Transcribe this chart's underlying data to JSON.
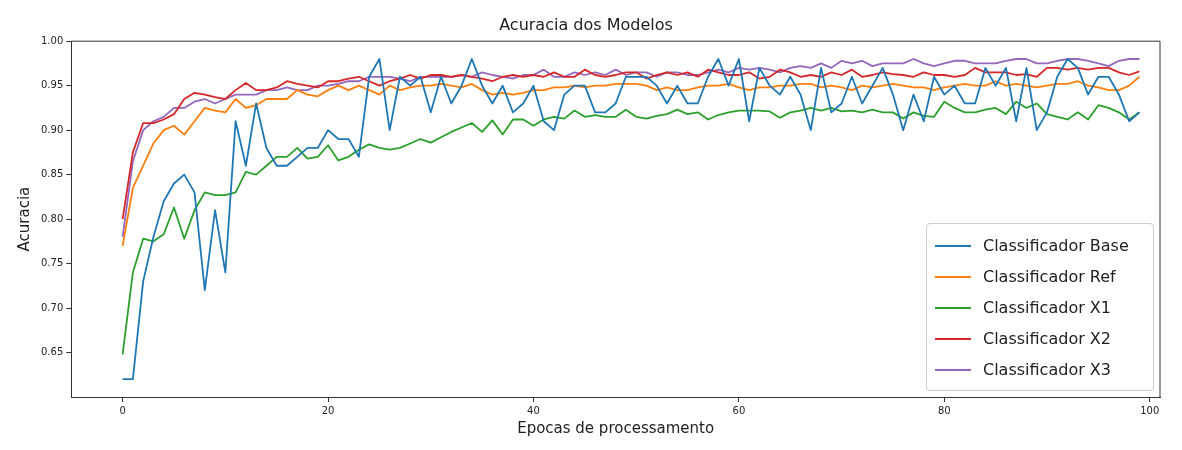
{
  "chart_data": {
    "type": "line",
    "title": "Acuracia dos Modelos",
    "xlabel": "Epocas de processamento",
    "ylabel": "Acuracia",
    "x": [
      0,
      1,
      2,
      3,
      4,
      5,
      6,
      7,
      8,
      9,
      10,
      11,
      12,
      13,
      14,
      15,
      16,
      17,
      18,
      19,
      20,
      21,
      22,
      23,
      24,
      25,
      26,
      27,
      28,
      29,
      30,
      31,
      32,
      33,
      34,
      35,
      36,
      37,
      38,
      39,
      40,
      41,
      42,
      43,
      44,
      45,
      46,
      47,
      48,
      49,
      50,
      51,
      52,
      53,
      54,
      55,
      56,
      57,
      58,
      59,
      60,
      61,
      62,
      63,
      64,
      65,
      66,
      67,
      68,
      69,
      70,
      71,
      72,
      73,
      74,
      75,
      76,
      77,
      78,
      79,
      80,
      81,
      82,
      83,
      84,
      85,
      86,
      87,
      88,
      89,
      90,
      91,
      92,
      93,
      94,
      95,
      96,
      97,
      98,
      99
    ],
    "xlim": [
      -5,
      101
    ],
    "xticks": [
      0,
      20,
      40,
      60,
      80,
      100
    ],
    "ylim": [
      0.6,
      1.0
    ],
    "yticks": [
      {
        "value": 0.65,
        "label": "0.65"
      },
      {
        "value": 0.7,
        "label": "0.70"
      },
      {
        "value": 0.75,
        "label": "0.75"
      },
      {
        "value": 0.8,
        "label": "0.80"
      },
      {
        "value": 0.85,
        "label": "0.85"
      },
      {
        "value": 0.9,
        "label": "0.90"
      },
      {
        "value": 0.95,
        "label": "0.95"
      },
      {
        "value": 1.0,
        "label": "1.00"
      }
    ],
    "grid": false,
    "legend": "bottom right",
    "marker": "none",
    "line_style": "solid",
    "series": [
      {
        "name": "Classificador Base",
        "color": "#1f77b4",
        "values": [
          0.62,
          0.62,
          0.73,
          0.78,
          0.82,
          0.84,
          0.85,
          0.83,
          0.72,
          0.81,
          0.74,
          0.91,
          0.86,
          0.93,
          0.88,
          0.86,
          0.86,
          0.87,
          0.88,
          0.88,
          0.9,
          0.89,
          0.89,
          0.87,
          0.96,
          0.98,
          0.9,
          0.96,
          0.95,
          0.96,
          0.92,
          0.96,
          0.93,
          0.95,
          0.98,
          0.95,
          0.93,
          0.95,
          0.92,
          0.93,
          0.95,
          0.91,
          0.9,
          0.94,
          0.95,
          0.95,
          0.92,
          0.92,
          0.93,
          0.96,
          0.96,
          0.96,
          0.95,
          0.93,
          0.95,
          0.93,
          0.93,
          0.96,
          0.98,
          0.95,
          0.98,
          0.91,
          0.97,
          0.95,
          0.94,
          0.96,
          0.94,
          0.9,
          0.97,
          0.92,
          0.93,
          0.96,
          0.93,
          0.95,
          0.97,
          0.94,
          0.9,
          0.94,
          0.91,
          0.96,
          0.94,
          0.95,
          0.93,
          0.93,
          0.97,
          0.95,
          0.97,
          0.91,
          0.97,
          0.9,
          0.92,
          0.96,
          0.98,
          0.97,
          0.94,
          0.96,
          0.96,
          0.94,
          0.91,
          0.92
        ]
      },
      {
        "name": "Classificador Ref",
        "color": "#ff7f0e",
        "values": [
          0.77,
          0.835,
          0.86,
          0.885,
          0.9,
          0.905,
          0.895,
          0.91,
          0.925,
          0.922,
          0.92,
          0.935,
          0.925,
          0.928,
          0.935,
          0.935,
          0.935,
          0.945,
          0.94,
          0.938,
          0.945,
          0.95,
          0.945,
          0.95,
          0.945,
          0.94,
          0.95,
          0.945,
          0.948,
          0.95,
          0.95,
          0.952,
          0.95,
          0.948,
          0.952,
          0.945,
          0.94,
          0.942,
          0.94,
          0.942,
          0.945,
          0.945,
          0.948,
          0.948,
          0.95,
          0.948,
          0.95,
          0.95,
          0.952,
          0.952,
          0.952,
          0.95,
          0.945,
          0.948,
          0.945,
          0.945,
          0.948,
          0.95,
          0.95,
          0.952,
          0.948,
          0.945,
          0.948,
          0.948,
          0.95,
          0.95,
          0.952,
          0.952,
          0.948,
          0.95,
          0.948,
          0.945,
          0.95,
          0.948,
          0.95,
          0.952,
          0.95,
          0.948,
          0.948,
          0.945,
          0.948,
          0.95,
          0.952,
          0.95,
          0.95,
          0.955,
          0.95,
          0.952,
          0.95,
          0.948,
          0.95,
          0.952,
          0.952,
          0.955,
          0.95,
          0.948,
          0.945,
          0.945,
          0.95,
          0.96
        ]
      },
      {
        "name": "Classificador X1",
        "color": "#2ca02c",
        "values": [
          0.648,
          0.74,
          0.778,
          0.775,
          0.783,
          0.813,
          0.778,
          0.81,
          0.83,
          0.827,
          0.827,
          0.83,
          0.853,
          0.85,
          0.86,
          0.87,
          0.87,
          0.88,
          0.868,
          0.87,
          0.883,
          0.866,
          0.87,
          0.878,
          0.884,
          0.88,
          0.878,
          0.88,
          0.885,
          0.89,
          0.886,
          0.892,
          0.898,
          0.903,
          0.908,
          0.898,
          0.911,
          0.895,
          0.912,
          0.912,
          0.905,
          0.912,
          0.915,
          0.913,
          0.922,
          0.915,
          0.917,
          0.915,
          0.915,
          0.923,
          0.915,
          0.913,
          0.916,
          0.918,
          0.923,
          0.918,
          0.92,
          0.912,
          0.917,
          0.92,
          0.922,
          0.922,
          0.922,
          0.921,
          0.914,
          0.92,
          0.922,
          0.925,
          0.922,
          0.925,
          0.921,
          0.922,
          0.92,
          0.923,
          0.92,
          0.92,
          0.913,
          0.92,
          0.916,
          0.915,
          0.932,
          0.925,
          0.92,
          0.92,
          0.923,
          0.925,
          0.918,
          0.932,
          0.925,
          0.93,
          0.918,
          0.915,
          0.912,
          0.92,
          0.912,
          0.928,
          0.925,
          0.92,
          0.912,
          0.92
        ]
      },
      {
        "name": "Classificador X2",
        "color": "#d62728",
        "values": [
          0.8,
          0.875,
          0.908,
          0.908,
          0.912,
          0.918,
          0.935,
          0.942,
          0.94,
          0.937,
          0.935,
          0.945,
          0.953,
          0.945,
          0.945,
          0.948,
          0.955,
          0.952,
          0.95,
          0.948,
          0.955,
          0.955,
          0.958,
          0.96,
          0.955,
          0.95,
          0.955,
          0.958,
          0.962,
          0.958,
          0.962,
          0.962,
          0.96,
          0.962,
          0.96,
          0.958,
          0.955,
          0.96,
          0.962,
          0.96,
          0.962,
          0.96,
          0.965,
          0.96,
          0.96,
          0.968,
          0.962,
          0.96,
          0.962,
          0.965,
          0.965,
          0.958,
          0.962,
          0.965,
          0.962,
          0.965,
          0.96,
          0.968,
          0.965,
          0.962,
          0.962,
          0.965,
          0.958,
          0.96,
          0.968,
          0.965,
          0.96,
          0.962,
          0.96,
          0.965,
          0.962,
          0.968,
          0.96,
          0.962,
          0.965,
          0.963,
          0.962,
          0.96,
          0.965,
          0.962,
          0.962,
          0.96,
          0.962,
          0.97,
          0.965,
          0.965,
          0.965,
          0.962,
          0.963,
          0.96,
          0.97,
          0.97,
          0.968,
          0.97,
          0.968,
          0.97,
          0.97,
          0.965,
          0.962,
          0.966
        ]
      },
      {
        "name": "Classificador X3",
        "color": "#9467bd",
        "values": [
          0.78,
          0.865,
          0.9,
          0.91,
          0.915,
          0.925,
          0.925,
          0.932,
          0.935,
          0.93,
          0.935,
          0.94,
          0.94,
          0.94,
          0.945,
          0.945,
          0.948,
          0.945,
          0.945,
          0.95,
          0.95,
          0.952,
          0.955,
          0.955,
          0.96,
          0.96,
          0.96,
          0.958,
          0.955,
          0.96,
          0.96,
          0.96,
          0.96,
          0.962,
          0.96,
          0.965,
          0.962,
          0.96,
          0.958,
          0.962,
          0.962,
          0.968,
          0.96,
          0.96,
          0.965,
          0.962,
          0.965,
          0.962,
          0.968,
          0.962,
          0.965,
          0.965,
          0.96,
          0.965,
          0.965,
          0.962,
          0.962,
          0.965,
          0.968,
          0.965,
          0.97,
          0.968,
          0.97,
          0.968,
          0.965,
          0.97,
          0.972,
          0.97,
          0.975,
          0.97,
          0.978,
          0.975,
          0.978,
          0.972,
          0.975,
          0.975,
          0.975,
          0.98,
          0.975,
          0.972,
          0.975,
          0.978,
          0.978,
          0.975,
          0.975,
          0.975,
          0.978,
          0.98,
          0.98,
          0.975,
          0.975,
          0.978,
          0.98,
          0.98,
          0.978,
          0.975,
          0.972,
          0.978,
          0.98,
          0.98
        ]
      }
    ]
  }
}
